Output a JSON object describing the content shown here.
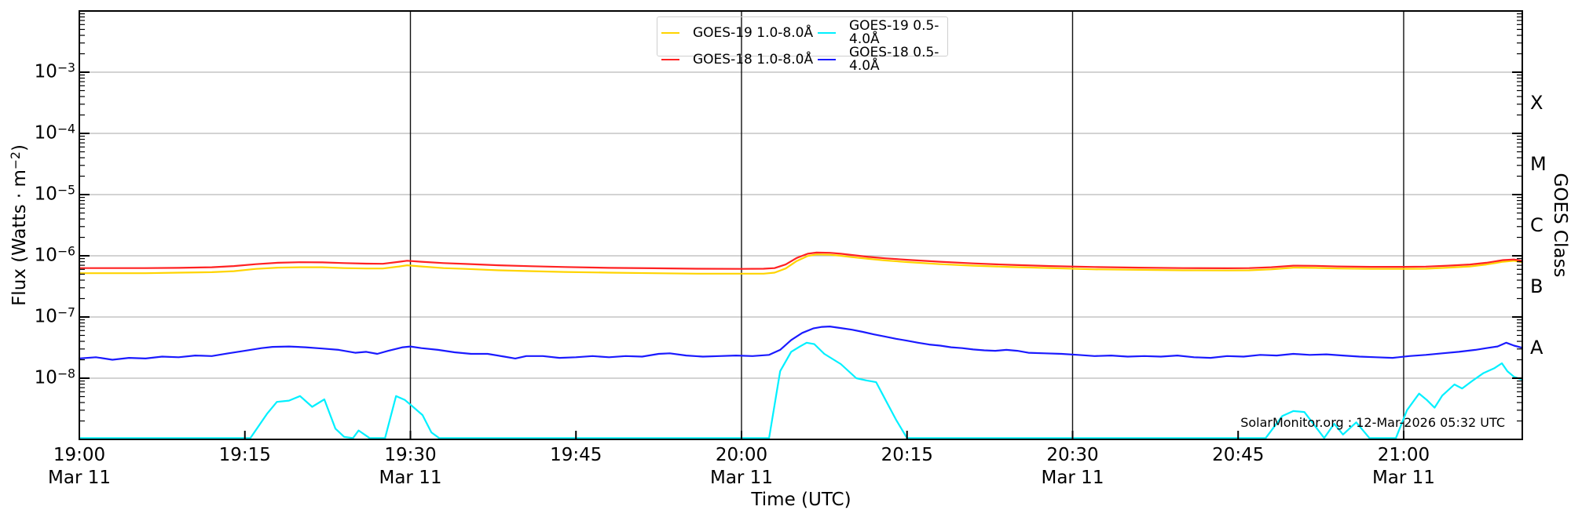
{
  "chart": {
    "ylabel": {
      "pre": "Flux (Watts · m",
      "sup": "−2",
      "post": ")"
    },
    "xlabel": "Time (UTC)",
    "right_label": "GOES Class",
    "annotation": "SolarMonitor.org : 12-Mar-2026 05:32 UTC",
    "y_tick_exponents": [
      -3,
      -4,
      -5,
      -6,
      -7,
      -8
    ],
    "x_ticks": [
      {
        "t": 0,
        "label": "19:00",
        "date": "Mar 11"
      },
      {
        "t": 15,
        "label": "19:15"
      },
      {
        "t": 30,
        "label": "19:30",
        "date": "Mar 11"
      },
      {
        "t": 45,
        "label": "19:45"
      },
      {
        "t": 60,
        "label": "20:00",
        "date": "Mar 11"
      },
      {
        "t": 75,
        "label": "20:15"
      },
      {
        "t": 90,
        "label": "20:30",
        "date": "Mar 11"
      },
      {
        "t": 105,
        "label": "20:45"
      },
      {
        "t": 120,
        "label": "21:00",
        "date": "Mar 11"
      }
    ],
    "class_labels": [
      {
        "label": "X",
        "exp": -3.5
      },
      {
        "label": "M",
        "exp": -4.5
      },
      {
        "label": "C",
        "exp": -5.5
      },
      {
        "label": "B",
        "exp": -6.5
      },
      {
        "label": "A",
        "exp": -7.5
      }
    ],
    "vlines_t": [
      30,
      60,
      90,
      120
    ],
    "legend_items": [
      {
        "label": "GOES-19 1.0-8.0Å",
        "color": "#FFD400"
      },
      {
        "label": "GOES-18 1.0-8.0Å",
        "color": "#FF2222"
      },
      {
        "label": "GOES-19 0.5-4.0Å",
        "color": "#00F0FF"
      },
      {
        "label": "GOES-18 0.5-4.0Å",
        "color": "#1A1AFF"
      }
    ],
    "colors": {
      "grid": "#b9b9b9",
      "vline": "#111111",
      "spine": "#000000",
      "background": "#ffffff"
    }
  },
  "chart_data": {
    "type": "line",
    "title": "GOES X-ray Flux",
    "xlabel": "Time (UTC)",
    "ylabel": "Flux (Watts · m^-2)",
    "yscale": "log",
    "ylim": [
      1e-09,
      0.01
    ],
    "x_unit": "minutes after Mar 11 19:00 UTC",
    "x_range_utc": [
      "Mar 11 19:00",
      "Mar 11 21:11"
    ],
    "x_tick_interval_min": 15,
    "grid": "horizontal decades",
    "legend_position": "top center, 2 columns",
    "series": [
      {
        "name": "GOES-19 1.0-8.0Å",
        "color": "#FFD400",
        "scale": 1e-07,
        "points": [
          [
            0,
            5.2
          ],
          [
            3,
            5.2
          ],
          [
            6,
            5.2
          ],
          [
            9,
            5.3
          ],
          [
            12,
            5.4
          ],
          [
            14,
            5.6
          ],
          [
            16,
            6.1
          ],
          [
            18,
            6.4
          ],
          [
            20,
            6.5
          ],
          [
            22,
            6.5
          ],
          [
            24,
            6.3
          ],
          [
            26,
            6.2
          ],
          [
            27.5,
            6.2
          ],
          [
            29,
            6.7
          ],
          [
            29.7,
            7.0
          ],
          [
            31,
            6.7
          ],
          [
            33,
            6.3
          ],
          [
            35,
            6.1
          ],
          [
            38,
            5.8
          ],
          [
            41,
            5.6
          ],
          [
            44,
            5.45
          ],
          [
            48,
            5.3
          ],
          [
            52,
            5.2
          ],
          [
            56,
            5.1
          ],
          [
            60,
            5.1
          ],
          [
            62,
            5.1
          ],
          [
            63,
            5.3
          ],
          [
            64,
            6.2
          ],
          [
            65,
            8.2
          ],
          [
            66,
            9.9
          ],
          [
            66.8,
            10.5
          ],
          [
            68,
            10.4
          ],
          [
            69,
            10.0
          ],
          [
            70,
            9.5
          ],
          [
            71.5,
            8.9
          ],
          [
            73,
            8.4
          ],
          [
            75,
            7.9
          ],
          [
            78,
            7.3
          ],
          [
            81,
            6.9
          ],
          [
            84,
            6.6
          ],
          [
            88,
            6.3
          ],
          [
            92,
            6.0
          ],
          [
            96,
            5.9
          ],
          [
            100,
            5.8
          ],
          [
            104,
            5.75
          ],
          [
            106,
            5.8
          ],
          [
            108,
            6.0
          ],
          [
            110,
            6.4
          ],
          [
            112,
            6.35
          ],
          [
            114,
            6.2
          ],
          [
            117,
            6.1
          ],
          [
            120,
            6.1
          ],
          [
            122,
            6.15
          ],
          [
            124,
            6.4
          ],
          [
            126,
            6.7
          ],
          [
            127.5,
            7.2
          ],
          [
            129,
            8.0
          ],
          [
            130,
            8.3
          ],
          [
            130.7,
            7.9
          ]
        ]
      },
      {
        "name": "GOES-18 1.0-8.0Å",
        "color": "#FF2222",
        "scale": 1e-07,
        "points": [
          [
            0,
            6.3
          ],
          [
            3,
            6.3
          ],
          [
            6,
            6.3
          ],
          [
            9,
            6.35
          ],
          [
            12,
            6.5
          ],
          [
            14,
            6.8
          ],
          [
            16,
            7.3
          ],
          [
            18,
            7.7
          ],
          [
            20,
            7.85
          ],
          [
            22,
            7.8
          ],
          [
            24,
            7.6
          ],
          [
            26,
            7.45
          ],
          [
            27.5,
            7.4
          ],
          [
            29,
            8.0
          ],
          [
            29.7,
            8.3
          ],
          [
            31,
            8.0
          ],
          [
            33,
            7.6
          ],
          [
            35,
            7.35
          ],
          [
            38,
            7.0
          ],
          [
            41,
            6.75
          ],
          [
            44,
            6.55
          ],
          [
            48,
            6.35
          ],
          [
            52,
            6.25
          ],
          [
            56,
            6.15
          ],
          [
            60,
            6.1
          ],
          [
            62,
            6.15
          ],
          [
            63,
            6.3
          ],
          [
            64,
            7.2
          ],
          [
            65,
            9.2
          ],
          [
            66,
            10.8
          ],
          [
            66.8,
            11.3
          ],
          [
            68,
            11.2
          ],
          [
            69,
            10.8
          ],
          [
            70,
            10.3
          ],
          [
            71.5,
            9.6
          ],
          [
            73,
            9.1
          ],
          [
            75,
            8.6
          ],
          [
            78,
            8.0
          ],
          [
            81,
            7.5
          ],
          [
            84,
            7.15
          ],
          [
            88,
            6.8
          ],
          [
            92,
            6.55
          ],
          [
            96,
            6.4
          ],
          [
            100,
            6.3
          ],
          [
            104,
            6.25
          ],
          [
            106,
            6.3
          ],
          [
            108,
            6.5
          ],
          [
            110,
            6.9
          ],
          [
            112,
            6.85
          ],
          [
            114,
            6.7
          ],
          [
            117,
            6.6
          ],
          [
            120,
            6.6
          ],
          [
            122,
            6.65
          ],
          [
            124,
            6.9
          ],
          [
            126,
            7.2
          ],
          [
            127.5,
            7.7
          ],
          [
            129,
            8.5
          ],
          [
            130,
            8.7
          ],
          [
            130.7,
            8.3
          ]
        ]
      },
      {
        "name": "GOES-19 0.5-4.0Å",
        "color": "#00F0FF",
        "scale": 1e-09,
        "points": [
          [
            0,
            1.05
          ],
          [
            15.5,
            1.05
          ],
          [
            17,
            2.6
          ],
          [
            17.9,
            4.1
          ],
          [
            19,
            4.3
          ],
          [
            20,
            5.1
          ],
          [
            21.1,
            3.4
          ],
          [
            22.2,
            4.5
          ],
          [
            23.2,
            1.5
          ],
          [
            24,
            1.1
          ],
          [
            24.8,
            1.05
          ],
          [
            25.3,
            1.4
          ],
          [
            26.3,
            1.05
          ],
          [
            27.7,
            1.05
          ],
          [
            28.7,
            5.1
          ],
          [
            29.5,
            4.4
          ],
          [
            30,
            3.7
          ],
          [
            31.1,
            2.5
          ],
          [
            31.9,
            1.3
          ],
          [
            32.6,
            1.05
          ],
          [
            62.5,
            1.05
          ],
          [
            63.5,
            13
          ],
          [
            64.5,
            27
          ],
          [
            65.3,
            33
          ],
          [
            65.9,
            38
          ],
          [
            66.6,
            36
          ],
          [
            67.5,
            25
          ],
          [
            69,
            17
          ],
          [
            70.4,
            10
          ],
          [
            71.3,
            9.2
          ],
          [
            72.2,
            8.6
          ],
          [
            73,
            4.6
          ],
          [
            74,
            2.1
          ],
          [
            75,
            1.05
          ],
          [
            107.5,
            1.05
          ],
          [
            109,
            2.4
          ],
          [
            110,
            2.9
          ],
          [
            111,
            2.8
          ],
          [
            112.8,
            1.05
          ],
          [
            113.7,
            1.8
          ],
          [
            114.5,
            1.2
          ],
          [
            115.7,
            1.9
          ],
          [
            116.9,
            1.05
          ],
          [
            119.3,
            1.05
          ],
          [
            120.3,
            3.0
          ],
          [
            121.4,
            5.6
          ],
          [
            122.1,
            4.4
          ],
          [
            122.8,
            3.3
          ],
          [
            123.5,
            5.2
          ],
          [
            124.6,
            7.9
          ],
          [
            125.3,
            6.8
          ],
          [
            126.2,
            9.0
          ],
          [
            127.2,
            12
          ],
          [
            128.2,
            14.5
          ],
          [
            128.9,
            17.5
          ],
          [
            129.4,
            13
          ],
          [
            130,
            10.5
          ],
          [
            130.7,
            9.5
          ]
        ]
      },
      {
        "name": "GOES-18 0.5-4.0Å",
        "color": "#1A1AFF",
        "scale": 1e-08,
        "points": [
          [
            0,
            2.1
          ],
          [
            1.5,
            2.2
          ],
          [
            3,
            2.0
          ],
          [
            4.5,
            2.15
          ],
          [
            6,
            2.1
          ],
          [
            7.5,
            2.25
          ],
          [
            9,
            2.2
          ],
          [
            10.5,
            2.35
          ],
          [
            12,
            2.3
          ],
          [
            13.5,
            2.55
          ],
          [
            15,
            2.8
          ],
          [
            16.5,
            3.1
          ],
          [
            17.5,
            3.25
          ],
          [
            19,
            3.3
          ],
          [
            20.5,
            3.2
          ],
          [
            22,
            3.05
          ],
          [
            23.5,
            2.9
          ],
          [
            25,
            2.6
          ],
          [
            26,
            2.7
          ],
          [
            27,
            2.5
          ],
          [
            28,
            2.8
          ],
          [
            29.3,
            3.2
          ],
          [
            30,
            3.3
          ],
          [
            31,
            3.1
          ],
          [
            32.5,
            2.9
          ],
          [
            34,
            2.65
          ],
          [
            35.5,
            2.5
          ],
          [
            37,
            2.5
          ],
          [
            38.5,
            2.25
          ],
          [
            39.5,
            2.1
          ],
          [
            40.5,
            2.3
          ],
          [
            42,
            2.3
          ],
          [
            43.5,
            2.15
          ],
          [
            45,
            2.2
          ],
          [
            46.5,
            2.3
          ],
          [
            48,
            2.2
          ],
          [
            49.5,
            2.3
          ],
          [
            51,
            2.25
          ],
          [
            52.5,
            2.5
          ],
          [
            53.5,
            2.55
          ],
          [
            55,
            2.35
          ],
          [
            56.5,
            2.25
          ],
          [
            58,
            2.3
          ],
          [
            59.5,
            2.35
          ],
          [
            61,
            2.3
          ],
          [
            62.5,
            2.4
          ],
          [
            63.5,
            2.9
          ],
          [
            64.5,
            4.2
          ],
          [
            65.5,
            5.5
          ],
          [
            66.5,
            6.5
          ],
          [
            67.3,
            6.9
          ],
          [
            68,
            7.0
          ],
          [
            69,
            6.6
          ],
          [
            70,
            6.2
          ],
          [
            71,
            5.7
          ],
          [
            72,
            5.2
          ],
          [
            73,
            4.8
          ],
          [
            74,
            4.4
          ],
          [
            75,
            4.1
          ],
          [
            76,
            3.8
          ],
          [
            77,
            3.55
          ],
          [
            78,
            3.4
          ],
          [
            79,
            3.2
          ],
          [
            80,
            3.1
          ],
          [
            81,
            2.95
          ],
          [
            82,
            2.85
          ],
          [
            83,
            2.8
          ],
          [
            84,
            2.9
          ],
          [
            85,
            2.8
          ],
          [
            86,
            2.6
          ],
          [
            87.5,
            2.55
          ],
          [
            89,
            2.5
          ],
          [
            90.5,
            2.4
          ],
          [
            92,
            2.3
          ],
          [
            93.5,
            2.35
          ],
          [
            95,
            2.25
          ],
          [
            96.5,
            2.3
          ],
          [
            98,
            2.25
          ],
          [
            99.5,
            2.35
          ],
          [
            101,
            2.2
          ],
          [
            102.5,
            2.15
          ],
          [
            104,
            2.3
          ],
          [
            105.5,
            2.25
          ],
          [
            107,
            2.4
          ],
          [
            108.5,
            2.35
          ],
          [
            110,
            2.5
          ],
          [
            111.5,
            2.4
          ],
          [
            113,
            2.45
          ],
          [
            114.5,
            2.35
          ],
          [
            116,
            2.25
          ],
          [
            117.5,
            2.2
          ],
          [
            119,
            2.15
          ],
          [
            120.5,
            2.3
          ],
          [
            122,
            2.4
          ],
          [
            123.5,
            2.55
          ],
          [
            125,
            2.7
          ],
          [
            126.5,
            2.9
          ],
          [
            127.5,
            3.1
          ],
          [
            128.5,
            3.3
          ],
          [
            129.3,
            3.8
          ],
          [
            130,
            3.4
          ],
          [
            130.7,
            3.15
          ]
        ]
      }
    ]
  }
}
